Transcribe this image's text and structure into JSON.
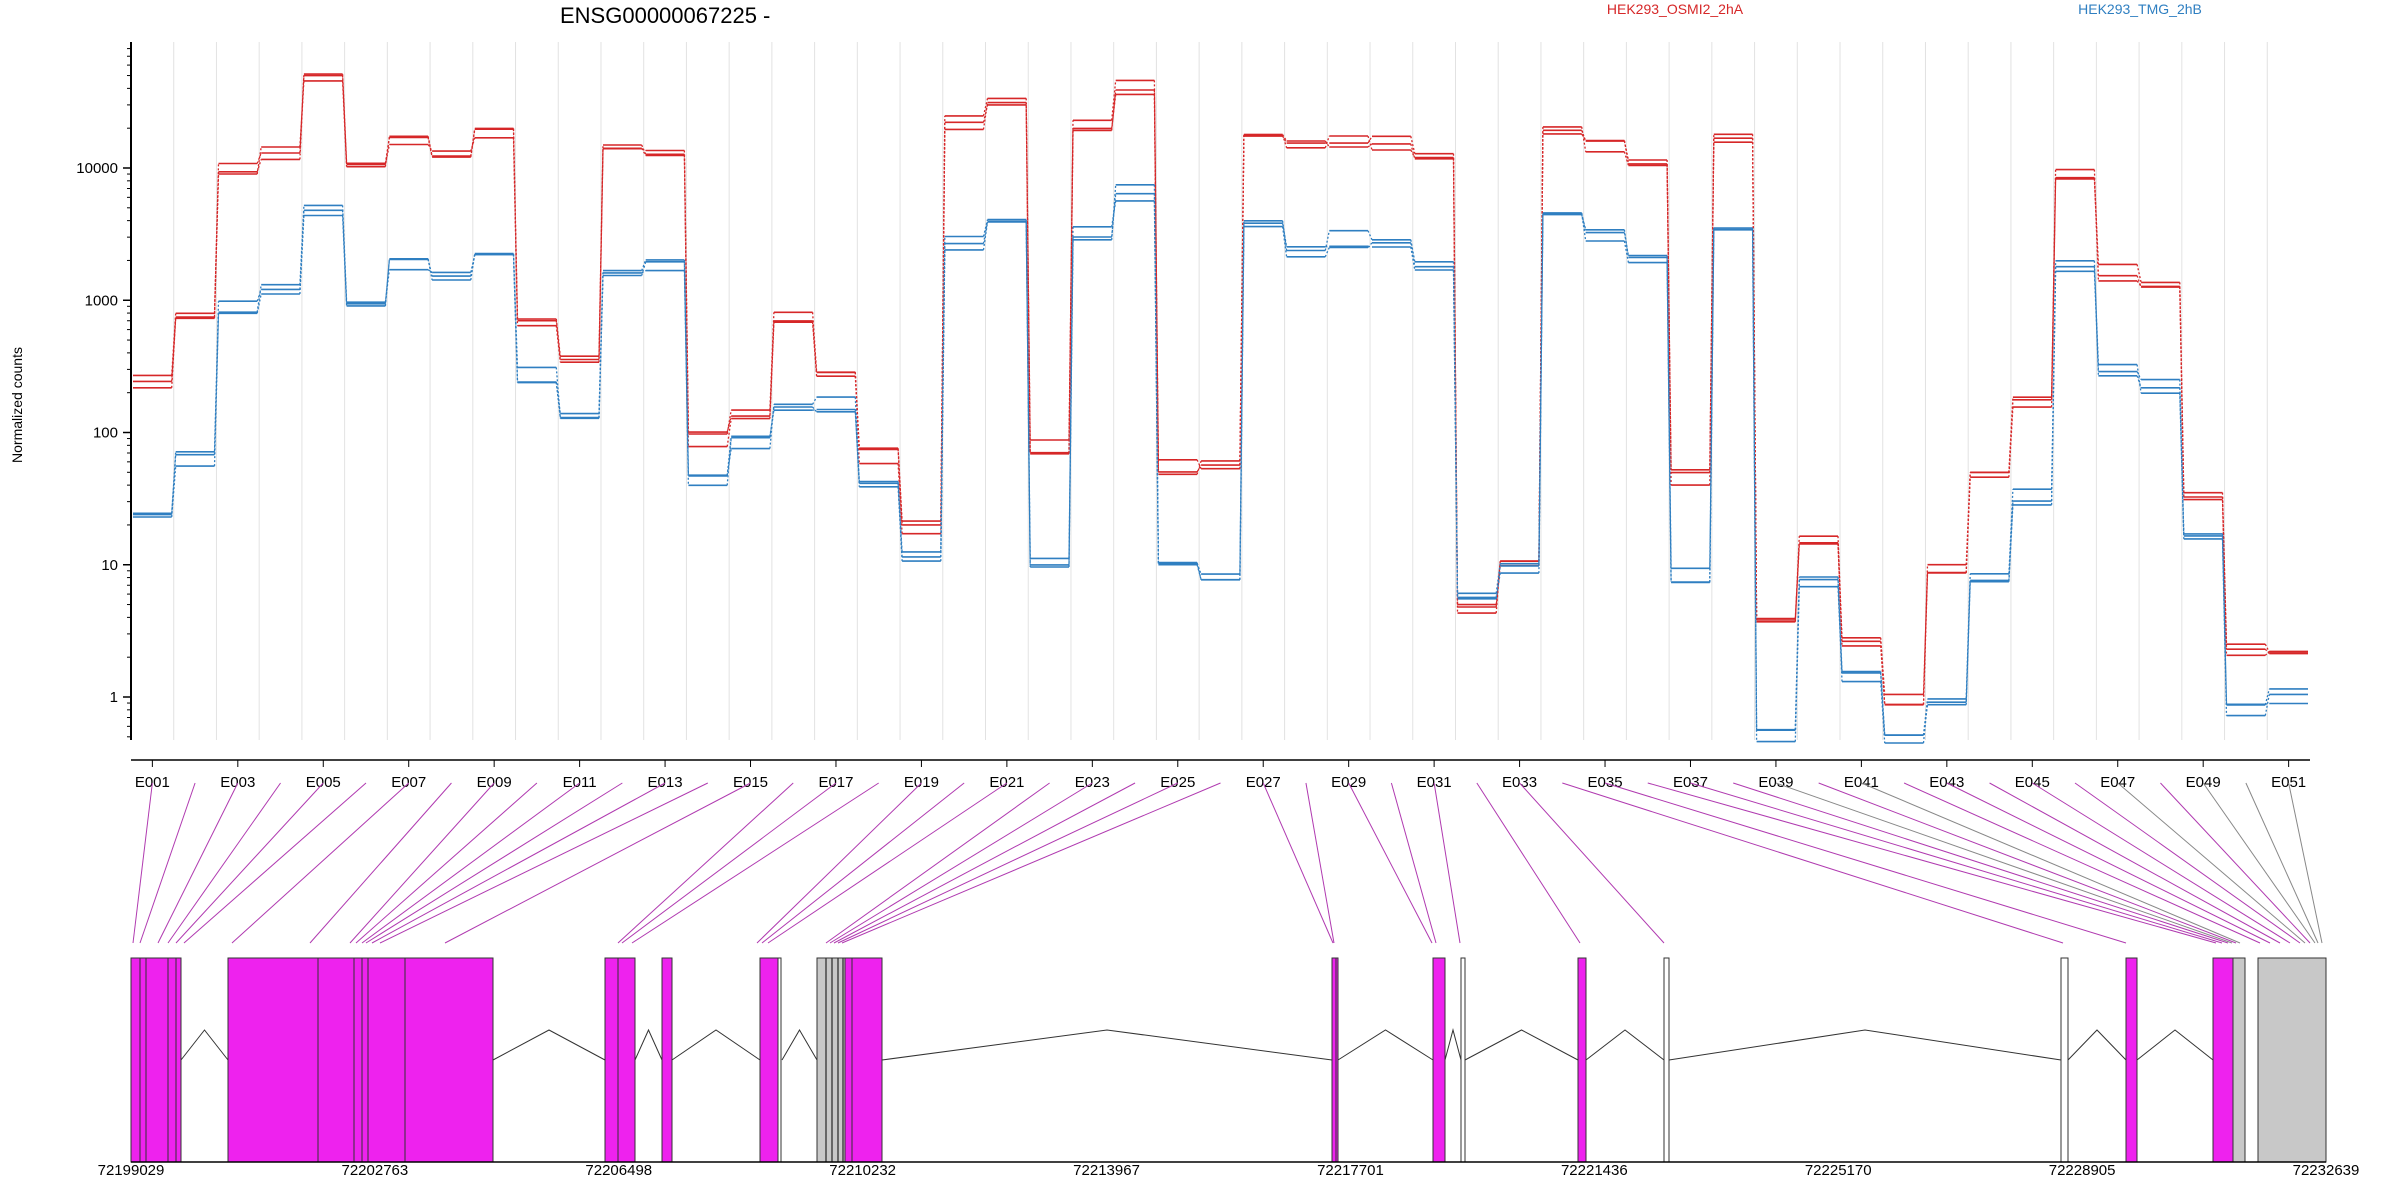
{
  "chart_data": {
    "type": "line",
    "title": "ENSG00000067225 -",
    "ylabel": "Normalized counts",
    "yscale": "log",
    "yticks": [
      "1",
      "10",
      "100",
      "1000",
      "10000"
    ],
    "exon_labels": [
      "E001",
      "E003",
      "E005",
      "E007",
      "E009",
      "E011",
      "E013",
      "E015",
      "E017",
      "E019",
      "E021",
      "E023",
      "E025",
      "E027",
      "E029",
      "E031",
      "E033",
      "E035",
      "E037",
      "E039",
      "E041",
      "E043",
      "E045",
      "E047",
      "E049",
      "E051"
    ],
    "n_exons": 51,
    "legend": [
      {
        "name": "HEK293_OSMI2_2hA",
        "color": "#d62728"
      },
      {
        "name": "HEK293_TMG_2hB",
        "color": "#2f7fc1"
      }
    ],
    "series": [
      {
        "name": "HEK293_OSMI2_2hA",
        "color": "#d62728",
        "values": [
          250,
          780,
          9500,
          12500,
          45000,
          10000,
          17000,
          12000,
          19500,
          750,
          330,
          13500,
          14000,
          90,
          140,
          700,
          290,
          65,
          20,
          22000,
          30000,
          80,
          22000,
          40000,
          55,
          52,
          20000,
          14000,
          16000,
          16000,
          11500,
          5,
          11,
          20000,
          15000,
          10000,
          45,
          17000,
          4,
          15,
          2.5,
          1,
          10,
          50,
          160,
          9000,
          1600,
          1300,
          30,
          2.2,
          2.2
        ]
      },
      {
        "name": "HEK293_TMG_2hB",
        "color": "#2f7fc1",
        "values": [
          25,
          65,
          850,
          1150,
          4500,
          1050,
          1950,
          1450,
          2500,
          270,
          140,
          1750,
          1800,
          45,
          85,
          150,
          165,
          40,
          11,
          2800,
          4200,
          10,
          3300,
          6500,
          11,
          9,
          3500,
          2500,
          2900,
          2950,
          1950,
          6,
          9,
          3900,
          3000,
          2100,
          8,
          3600,
          0.5,
          7,
          1.5,
          0.5,
          1,
          8,
          33,
          1800,
          300,
          220,
          15,
          0.8,
          1
        ]
      }
    ],
    "gene_model": {
      "coordinate_ticks": [
        "72199029",
        "72202763",
        "72206498",
        "72210232",
        "72213967",
        "72217701",
        "72221436",
        "72225170",
        "72228905",
        "72232639"
      ],
      "exon_color": "#ee22ee",
      "utr_color": "#c8c8c8",
      "grouped_exon_color": "#a8a8a8"
    }
  }
}
